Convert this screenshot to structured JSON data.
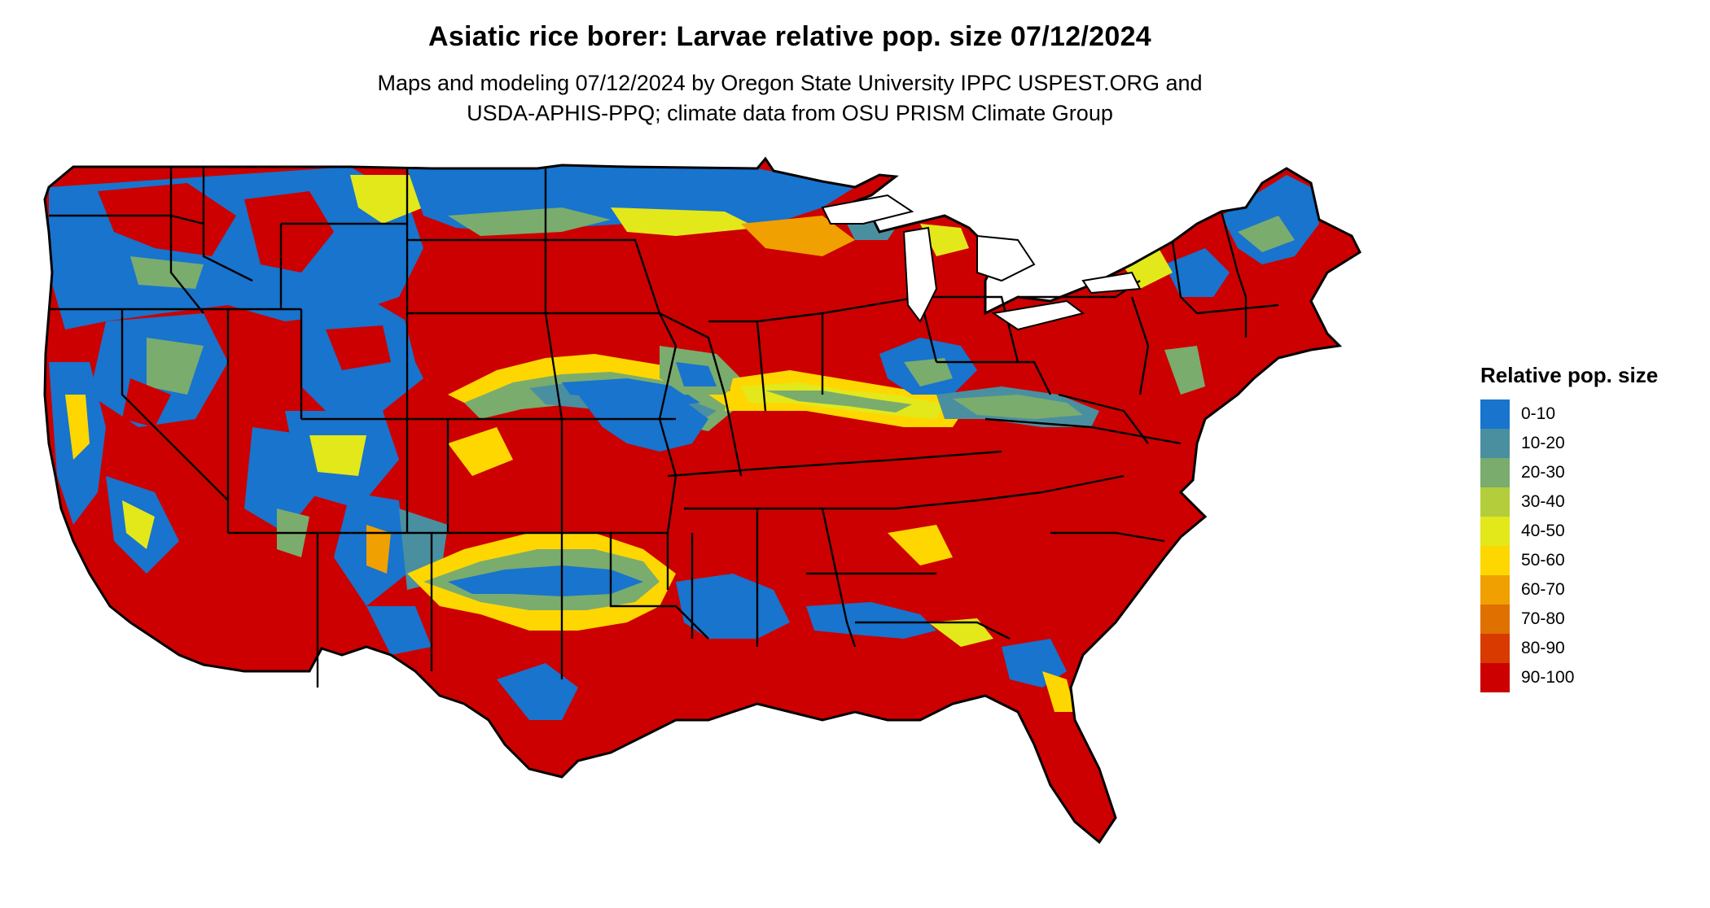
{
  "title": "Asiatic rice borer: Larvae relative pop. size 07/12/2024",
  "subtitle_line1": "Maps and modeling 07/12/2024 by Oregon State University IPPC USPEST.ORG and",
  "subtitle_line2": "USDA-APHIS-PPQ; climate data from OSU PRISM Climate Group",
  "legend": {
    "title": "Relative pop. size",
    "items": [
      {
        "label": "0-10",
        "color": "#1874CD"
      },
      {
        "label": "10-20",
        "color": "#4A8FA0"
      },
      {
        "label": "20-30",
        "color": "#7AAC6E"
      },
      {
        "label": "30-40",
        "color": "#B3CE3A"
      },
      {
        "label": "40-50",
        "color": "#E3E81B"
      },
      {
        "label": "50-60",
        "color": "#FFD700"
      },
      {
        "label": "60-70",
        "color": "#F0A000"
      },
      {
        "label": "70-80",
        "color": "#E07000"
      },
      {
        "label": "80-90",
        "color": "#D83A00"
      },
      {
        "label": "90-100",
        "color": "#CC0000"
      }
    ]
  },
  "map": {
    "region": "contiguous United States",
    "state_border_color": "#000000",
    "background_color": "#ffffff"
  }
}
